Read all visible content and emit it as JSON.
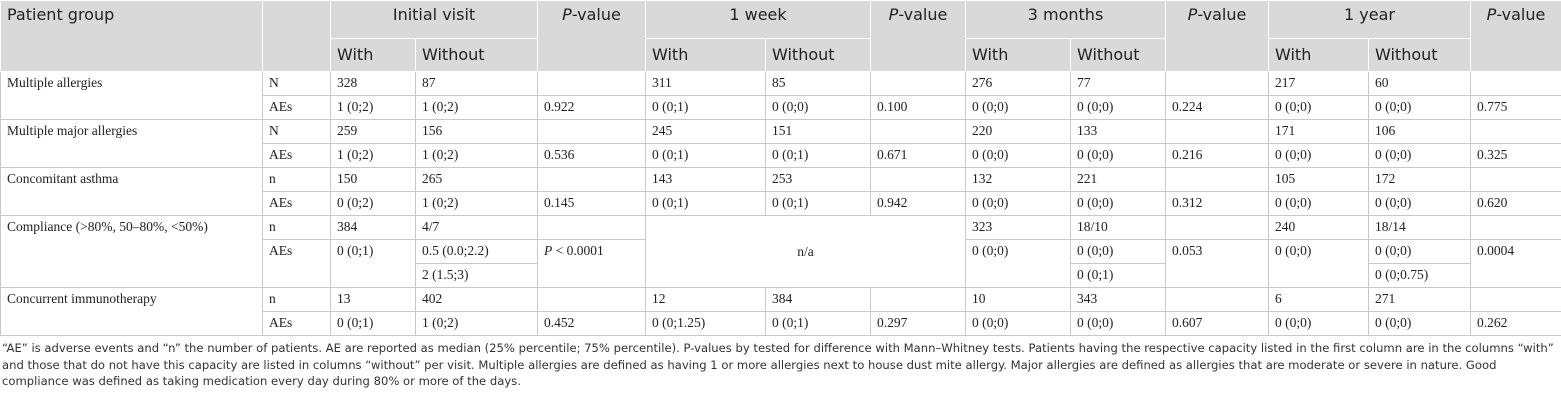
{
  "header": {
    "patient_group": "Patient group",
    "visits": [
      "Initial visit",
      "1 week",
      "3 months",
      "1 year"
    ],
    "p_value": "P-value",
    "with": "With",
    "without": "Without"
  },
  "groups": [
    {
      "name": "Multiple allergies",
      "rows": [
        [
          "N",
          "328",
          "87",
          "311",
          "85",
          "276",
          "77",
          "217",
          "60"
        ],
        [
          "AEs",
          "1 (0;2)",
          "1 (0;2)",
          "0.922",
          "0 (0;1)",
          "0 (0;0)",
          "0.100",
          "0 (0;0)",
          "0 (0;0)",
          "0.224",
          "0 (0;0)",
          "0 (0;0)",
          "0.775"
        ]
      ]
    },
    {
      "name": "Multiple major allergies",
      "rows": [
        [
          "N",
          "259",
          "156",
          "245",
          "151",
          "220",
          "133",
          "171",
          "106"
        ],
        [
          "AEs",
          "1 (0;2)",
          "1 (0;2)",
          "0.536",
          "0 (0;1)",
          "0 (0;1)",
          "0.671",
          "0 (0;0)",
          "0 (0;0)",
          "0.216",
          "0 (0;0)",
          "0 (0;0)",
          "0.325"
        ]
      ]
    },
    {
      "name": "Concomitant asthma",
      "rows": [
        [
          "n",
          "150",
          "265",
          "143",
          "253",
          "132",
          "221",
          "105",
          "172"
        ],
        [
          "AEs",
          "0 (0;2)",
          "1 (0;2)",
          "0.145",
          "0 (0;1)",
          "0 (0;1)",
          "0.942",
          "0 (0;0)",
          "0 (0;0)",
          "0.312",
          "0 (0;0)",
          "0 (0;0)",
          "0.620"
        ]
      ]
    },
    {
      "name": "Compliance (>80%, 50–80%, <50%)",
      "rows": [
        [
          "n",
          "384",
          "4/7",
          "n/a",
          "323",
          "18/10",
          "240",
          "18/14"
        ],
        [
          "AEs",
          "0 (0;1)",
          "0.5 (0.0;2.2)",
          "P < 0.0001",
          "0 (0;0)",
          "0 (0;0)",
          "0.053",
          "0 (0;0)",
          "0 (0;0)",
          "0.0004"
        ],
        [
          "2 (1.5;3)",
          "0 (0;1)",
          "0 (0;0.75)"
        ]
      ]
    },
    {
      "name": "Concurrent immunotherapy",
      "rows": [
        [
          "n",
          "13",
          "402",
          "12",
          "384",
          "10",
          "343",
          "6",
          "271"
        ],
        [
          "AEs",
          "0 (0;1)",
          "1 (0;2)",
          "0.452",
          "0 (0;1.25)",
          "0 (0;1)",
          "0.297",
          "0 (0;0)",
          "0 (0;0)",
          "0.607",
          "0 (0;0)",
          "0 (0;0)",
          "0.262"
        ]
      ]
    }
  ],
  "footnote": "“AE” is adverse events and “n” the number of patients. AE are reported as median (25% percentile; 75% percentile). P-values by tested for difference with Mann–Whitney tests. Patients having the respective capacity listed in the first column are in the columns “with” and those that do not have this capacity are listed in columns “without” per visit. Multiple allergies are defined as having 1 or more allergies next to house dust mite allergy. Major allergies are defined as allergies that are moderate or severe in nature. Good compliance was defined as taking medication every day during 80% or more of the days."
}
